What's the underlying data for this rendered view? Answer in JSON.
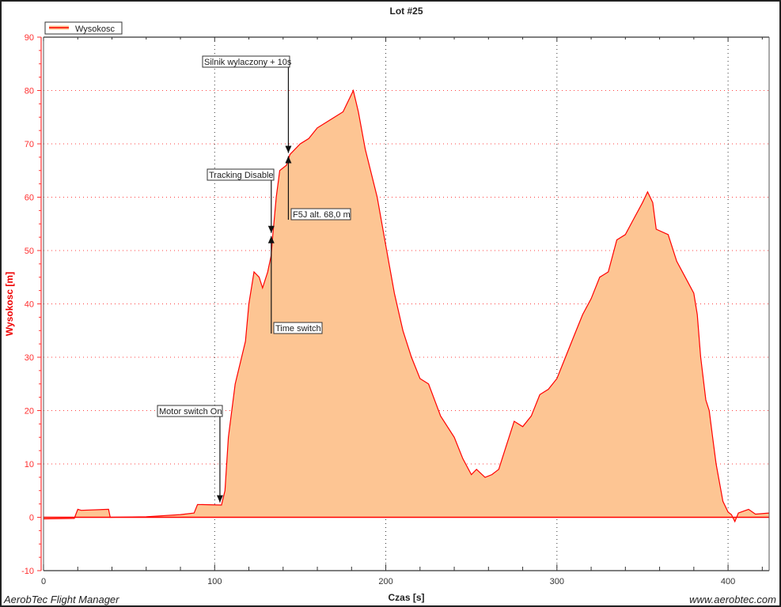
{
  "chart_data": {
    "type": "area",
    "title": "Lot #25",
    "xlabel": "Czas [s]",
    "ylabel": "Wysokosc [m]",
    "xlim": [
      0,
      424
    ],
    "ylim": [
      -10,
      90
    ],
    "x_ticks": [
      0,
      100,
      200,
      300,
      400
    ],
    "y_ticks": [
      -10,
      0,
      10,
      20,
      30,
      40,
      50,
      60,
      70,
      80,
      90
    ],
    "grid": true,
    "legend_position": "top-left",
    "colors": {
      "line": "#ff0000",
      "fill": "#fdc593",
      "y_axis": "#ff3030"
    },
    "series": [
      {
        "name": "Wysokosc",
        "x": [
          0,
          18,
          20,
          22,
          38,
          39,
          60,
          80,
          88,
          90,
          104,
          106,
          108,
          112,
          118,
          120,
          123,
          126,
          128,
          131,
          133,
          134,
          136,
          138,
          142,
          144,
          150,
          155,
          160,
          165,
          170,
          175,
          178,
          181,
          184,
          188,
          195,
          200,
          205,
          210,
          215,
          220,
          225,
          232,
          240,
          245,
          250,
          253,
          258,
          262,
          266,
          270,
          275,
          280,
          285,
          290,
          295,
          300,
          305,
          310,
          315,
          320,
          325,
          330,
          335,
          340,
          345,
          350,
          353,
          356,
          358,
          365,
          370,
          375,
          380,
          382,
          384,
          387,
          389,
          391,
          393,
          397,
          400,
          402,
          404,
          406,
          412,
          416,
          424
        ],
        "y": [
          -0.3,
          -0.2,
          1.5,
          1.3,
          1.5,
          0,
          0.1,
          0.5,
          0.8,
          2.4,
          2.3,
          5,
          15,
          25,
          33,
          40,
          46,
          45,
          43,
          46,
          49,
          53,
          60,
          65,
          66,
          68,
          70,
          71,
          73,
          74,
          75,
          76,
          78,
          80,
          76,
          69,
          60,
          51,
          42,
          35,
          30,
          26,
          25,
          19,
          15,
          11,
          8,
          9,
          7.5,
          8,
          9,
          13,
          18,
          17,
          19,
          23,
          24,
          26,
          30,
          34,
          38,
          41,
          45,
          46,
          52,
          53,
          56,
          59,
          61,
          59,
          54,
          53,
          48,
          45,
          42,
          38,
          30,
          22,
          20,
          15,
          10,
          3,
          1,
          0.5,
          -0.8,
          0.8,
          1.5,
          0.6,
          0.8
        ]
      }
    ],
    "annotations": [
      {
        "label": "Motor switch On",
        "x": 104,
        "y": 2.5
      },
      {
        "label": "Time switch",
        "x": 134,
        "y": 53
      },
      {
        "label": "Tracking Disable",
        "x": 134,
        "y": 53
      },
      {
        "label": "Silnik wylaczony + 10s",
        "x": 144,
        "y": 68
      },
      {
        "label": "F5J alt. 68,0 m",
        "x": 144,
        "y": 68
      }
    ]
  },
  "footer": {
    "left": "AerobTec Flight Manager",
    "right": "www.aerobtec.com"
  }
}
